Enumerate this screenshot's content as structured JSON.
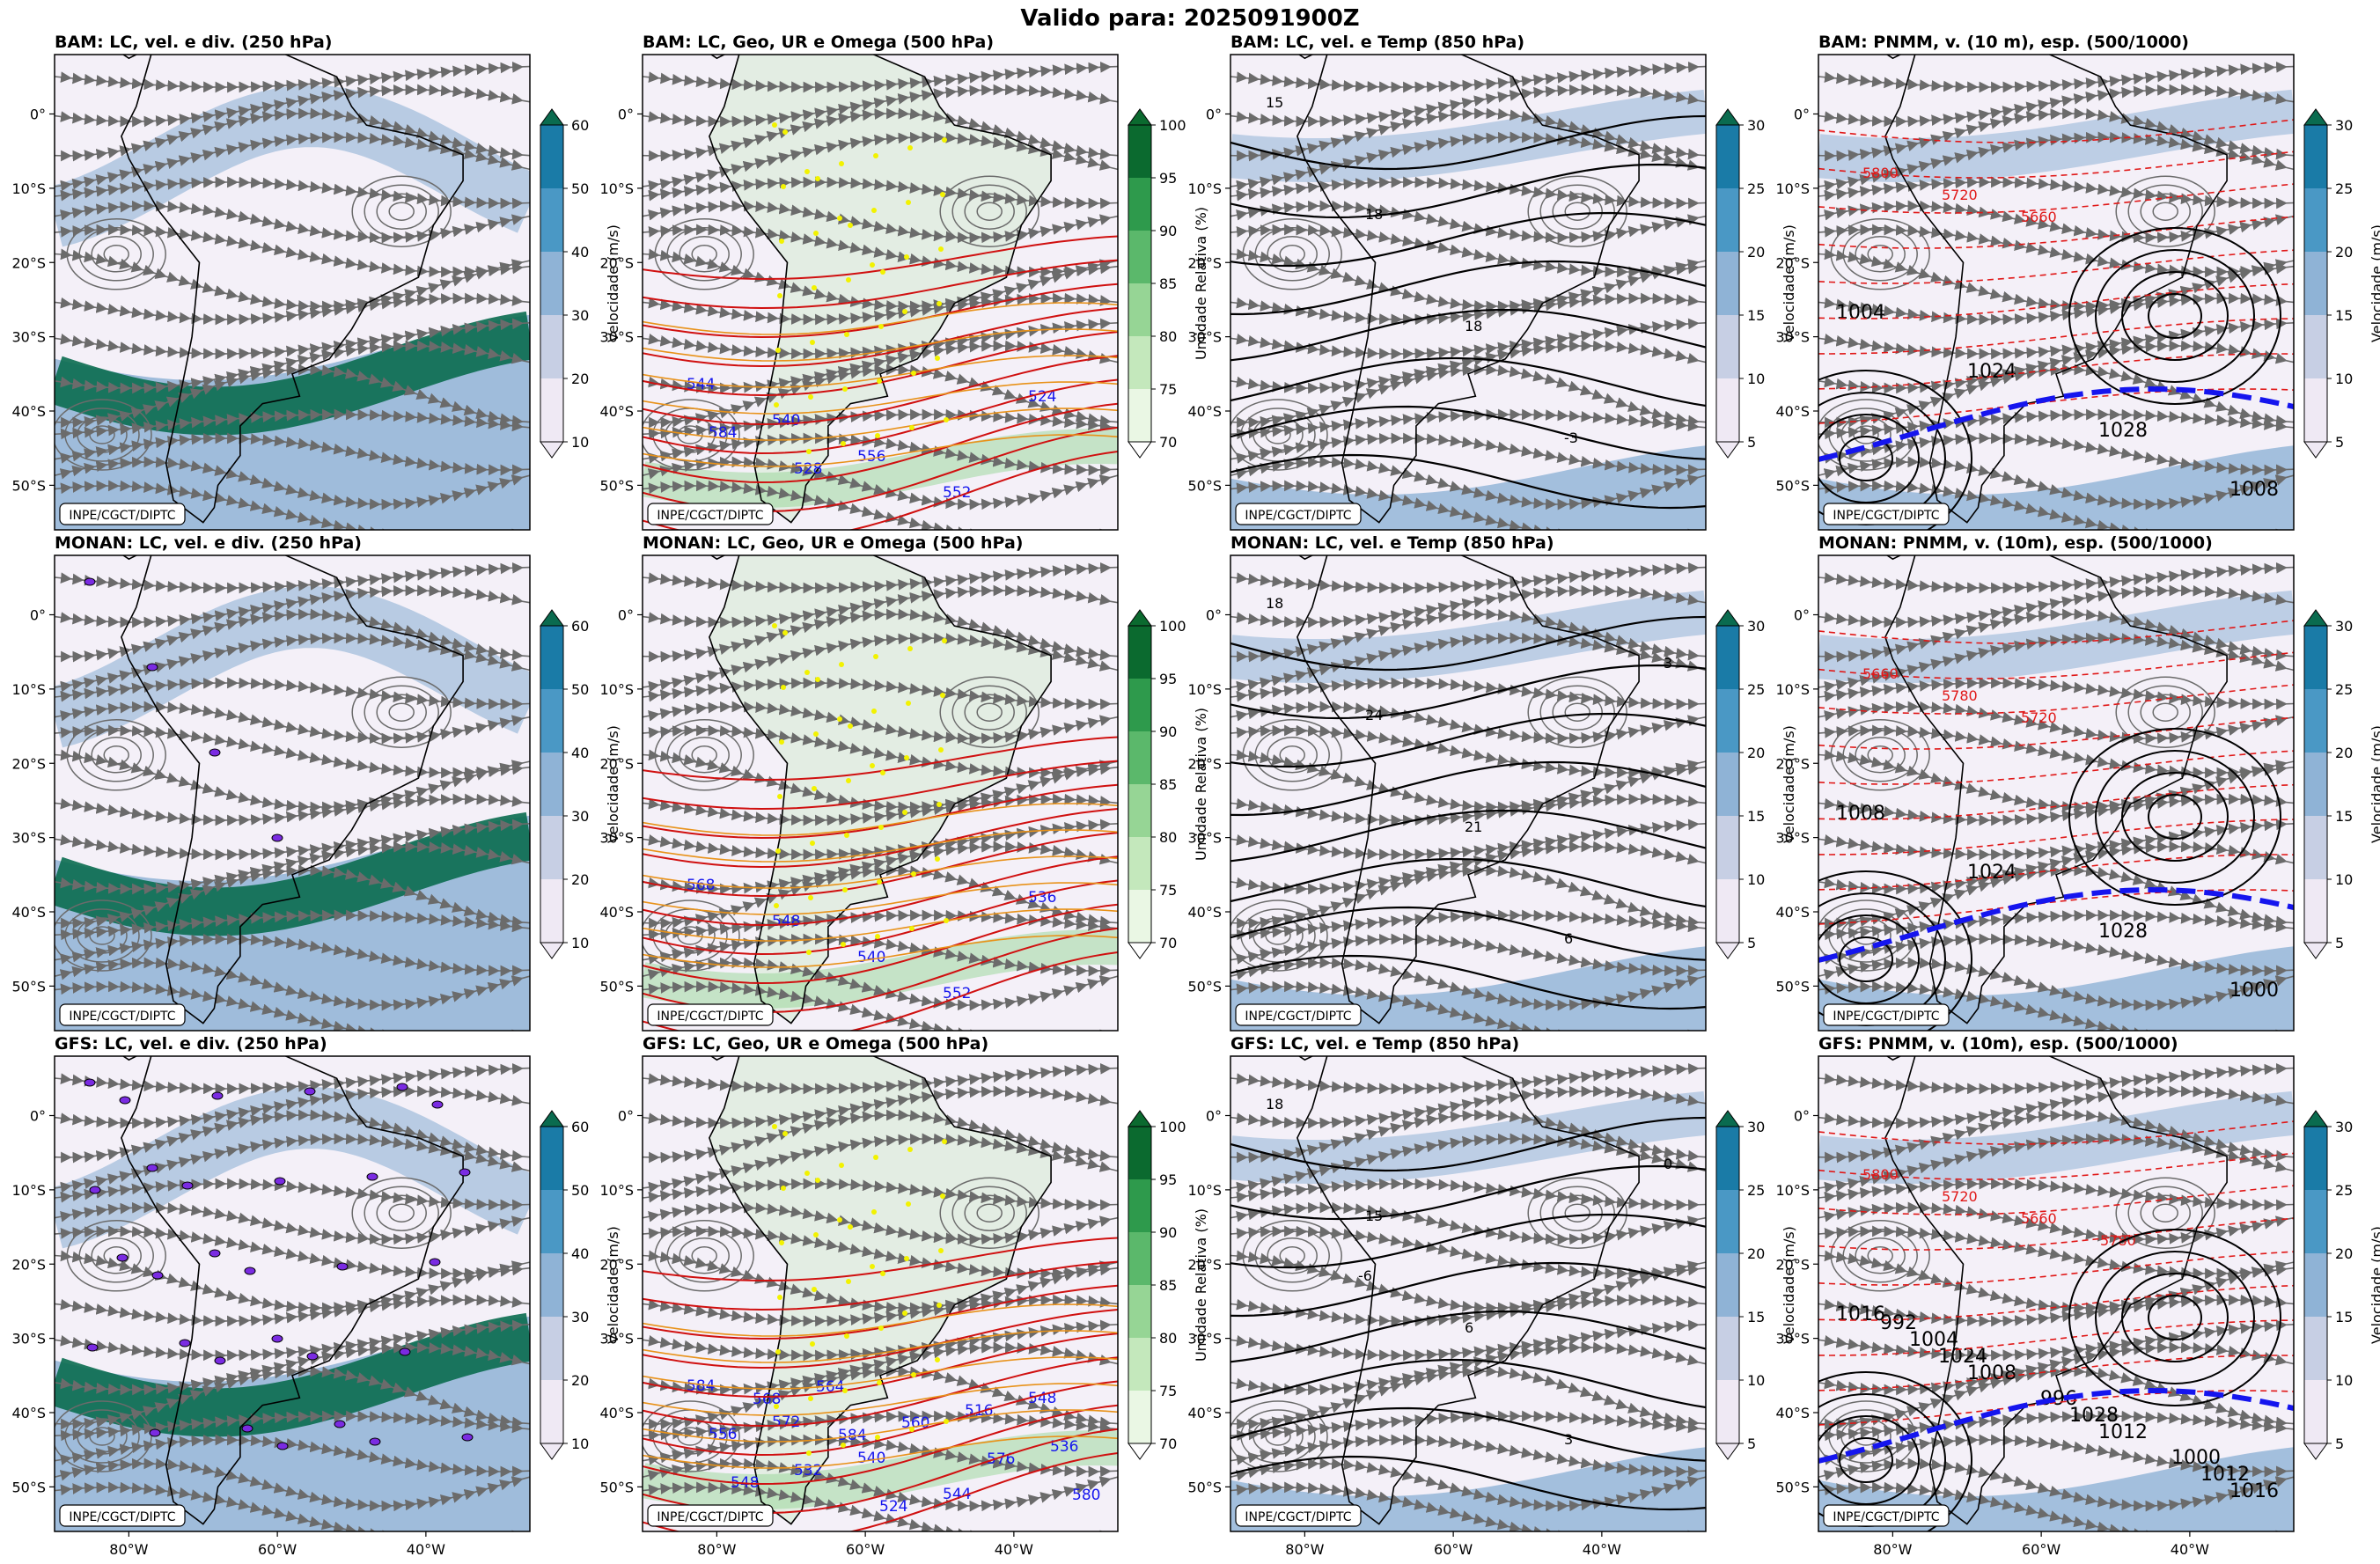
{
  "figure_title": "Valido para: 2025091900Z",
  "watermark": "INPE/CGCT/DIPTC",
  "row_models": [
    "BAM",
    "MONAN",
    "GFS"
  ],
  "panel_titles": [
    [
      "BAM: LC, vel. e div. (250 hPa)",
      "BAM: LC, Geo, UR e Omega (500 hPa)",
      "BAM: LC, vel. e Temp (850 hPa)",
      "BAM: PNMM, v. (10 m), esp. (500/1000)"
    ],
    [
      "MONAN: LC, vel. e div. (250 hPa)",
      "MONAN: LC, Geo, UR e Omega (500 hPa)",
      "MONAN: LC, vel. e Temp (850 hPa)",
      "MONAN: PNMM, v. (10m), esp. (500/1000)"
    ],
    [
      "GFS: LC, vel. e div. (250 hPa)",
      "GFS: LC, Geo, UR e Omega (500 hPa)",
      "GFS: LC, vel. e Temp (850 hPa)",
      "GFS: PNMM, v. (10m), esp. (500/1000)"
    ]
  ],
  "lat_ticks": [
    "0°",
    "10°S",
    "20°S",
    "30°S",
    "40°S",
    "50°S"
  ],
  "lon_ticks": [
    "80°W",
    "60°W",
    "40°W"
  ],
  "colorbars": [
    {
      "label": "Velocidade (m/s)",
      "ticks": [
        "10",
        "20",
        "30",
        "40",
        "50",
        "60"
      ],
      "colors": [
        "#efe9f4",
        "#c7cfe4",
        "#8fb3d6",
        "#4a98c5",
        "#1a7ba7",
        "#0a6b4f"
      ]
    },
    {
      "label": "Umidade Relativa (%)",
      "ticks": [
        "70",
        "75",
        "80",
        "85",
        "90",
        "95",
        "100"
      ],
      "colors": [
        "#ffffff",
        "#eaf7e4",
        "#c4e8bc",
        "#96d595",
        "#5bb86b",
        "#2e9a4c",
        "#0b6a2f"
      ]
    },
    {
      "label": "Velocidade (m/s)",
      "ticks": [
        "5",
        "10",
        "15",
        "20",
        "25",
        "30"
      ],
      "colors": [
        "#efe9f4",
        "#c7cfe4",
        "#8fb3d6",
        "#4a98c5",
        "#1a7ba7",
        "#0a6b4f"
      ]
    },
    {
      "label": "Velocidade (m/s)",
      "ticks": [
        "5",
        "10",
        "15",
        "20",
        "25",
        "30"
      ],
      "colors": [
        "#efe9f4",
        "#c7cfe4",
        "#8fb3d6",
        "#4a98c5",
        "#1a7ba7",
        "#0a6b4f"
      ]
    }
  ],
  "geopotential_labels": [
    [
      "544",
      "540",
      "556",
      "552",
      "524",
      "584",
      "528"
    ],
    [
      "568",
      "548",
      "540",
      "552",
      "536"
    ],
    [
      "584",
      "572",
      "540",
      "544",
      "548",
      "556",
      "532",
      "524",
      "516",
      "536",
      "548",
      "564",
      "560",
      "576",
      "580",
      "568",
      "584"
    ]
  ],
  "temperature_labels": [
    [
      "15",
      "18",
      "18",
      "-3"
    ],
    [
      "18",
      "24",
      "21",
      "6",
      "3"
    ],
    [
      "18",
      "15",
      "6",
      "3",
      "0",
      "-6"
    ]
  ],
  "pressure_labels": [
    [
      "1004",
      "1024",
      "1028",
      "1008"
    ],
    [
      "1008",
      "1024",
      "1028",
      "1000"
    ],
    [
      "1016",
      "1008",
      "1012",
      "1016",
      "1024",
      "1028",
      "1012",
      "1004",
      "996",
      "1000",
      "992"
    ]
  ],
  "thickness_labels": [
    [
      "5800",
      "5720",
      "5660"
    ],
    [
      "5660",
      "5780",
      "5720"
    ],
    [
      "5800",
      "5720",
      "5660",
      "5780"
    ]
  ],
  "colors": {
    "streamline": "#6b6b6b",
    "geopotential": "#d01010",
    "thickness": "#e01818",
    "omega_yellow": "#f2f200",
    "divergence": "#7a2be2",
    "freezing_line": "#1515ee"
  }
}
